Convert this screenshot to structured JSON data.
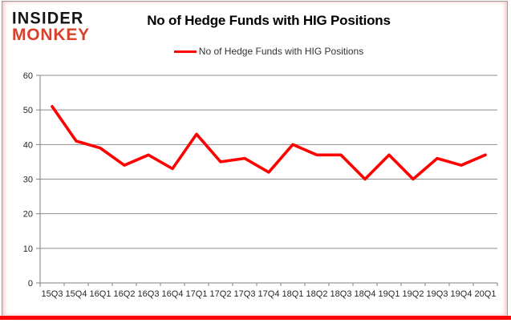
{
  "logo": {
    "line1": "INSIDER",
    "line2": "MONKEY"
  },
  "header": {
    "title": "No of Hedge Funds with HIG Positions"
  },
  "legend": {
    "label": "No of Hedge Funds with HIG Positions",
    "line_color": "#ff0000"
  },
  "colors": {
    "series_red": "#ff0000",
    "logo_red": "#d8422c",
    "gridline_gray": "#8e8e8e",
    "axis_gray": "#7f7f7f",
    "tick_text": "#262626",
    "accent_bottom_bar": "#ff0000"
  },
  "chart_data": {
    "type": "line",
    "title": "No of Hedge Funds with HIG Positions",
    "categories": [
      "15Q3",
      "15Q4",
      "16Q1",
      "16Q2",
      "16Q3",
      "16Q4",
      "17Q1",
      "17Q2",
      "17Q3",
      "17Q4",
      "18Q1",
      "18Q2",
      "18Q3",
      "18Q4",
      "19Q1",
      "19Q2",
      "19Q3",
      "19Q4",
      "20Q1"
    ],
    "series": [
      {
        "name": "No of Hedge Funds with HIG Positions",
        "color": "#ff0000",
        "values": [
          51,
          41,
          39,
          34,
          37,
          33,
          43,
          35,
          36,
          32,
          40,
          37,
          37,
          30,
          37,
          30,
          36,
          34,
          37
        ]
      }
    ],
    "xlabel": "",
    "ylabel": "",
    "ylim": [
      0,
      60
    ],
    "yticks": [
      0,
      10,
      20,
      30,
      40,
      50,
      60
    ],
    "grid": true,
    "legend_position": "top-center"
  }
}
